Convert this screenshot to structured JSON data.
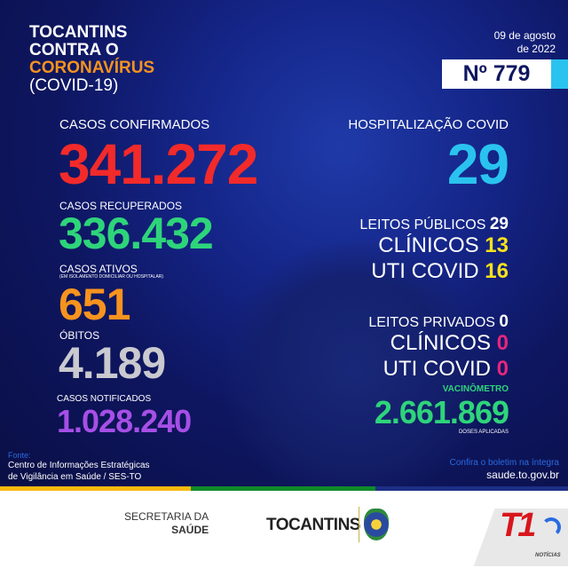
{
  "header": {
    "title_line1": "TOCANTINS",
    "title_line2": "CONTRA O",
    "title_line3": "CORONAVÍRUS",
    "title_line4": "(COVID-19)",
    "date_line1": "09 de agosto",
    "date_line2": "de 2022",
    "bulletin_number": "Nº 779"
  },
  "left": {
    "confirmed_label": "CASOS CONFIRMADOS",
    "confirmed_value": "341.272",
    "recovered_label": "CASOS RECUPERADOS",
    "recovered_value": "336.432",
    "active_label": "CASOS ATIVOS",
    "active_sublabel": "(EM ISOLAMENTO DOMICILIAR OU HOSPITALAR)",
    "active_value": "651",
    "deaths_label": "ÓBITOS",
    "deaths_value": "4.189",
    "notified_label": "CASOS NOTIFICADOS",
    "notified_value": "1.028.240"
  },
  "right": {
    "hosp_label": "HOSPITALIZAÇÃO COVID",
    "hosp_value": "29",
    "public_label": "LEITOS PÚBLICOS",
    "public_value": "29",
    "public_clinic_label": "CLÍNICOS",
    "public_clinic_value": "13",
    "public_icu_label": "UTI COVID",
    "public_icu_value": "16",
    "private_label": "LEITOS PRIVADOS",
    "private_value": "0",
    "private_clinic_label": "CLÍNICOS",
    "private_clinic_value": "0",
    "private_icu_label": "UTI COVID",
    "private_icu_value": "0",
    "vacc_label": "VACINÔMETRO",
    "vacc_value": "2.661.869",
    "vacc_sublabel": "DOSES APLICADAS"
  },
  "footer": {
    "source_label": "Fonte:",
    "source_line1": "Centro de Informações Estratégicas",
    "source_line2": "de Vigilância em Saúde / SES-TO",
    "cta": "Confira o boletim na íntegra",
    "url": "saude.to.gov.br"
  },
  "logos": {
    "secretaria_line1": "SECRETARIA DA",
    "secretaria_line2": "SAÚDE",
    "tocantins": "TOCANTINS",
    "t1": "T1",
    "t1_sub": "NOTÍCIAS"
  },
  "colors": {
    "red": "#f22a2a",
    "green": "#2ed47a",
    "orange": "#f7931e",
    "gray": "#c9c9cf",
    "purple": "#a64fe6",
    "cyan": "#2ac3ef",
    "yellow": "#f6e21c",
    "pink": "#e5267c",
    "accent_orange": "#f7931e"
  }
}
